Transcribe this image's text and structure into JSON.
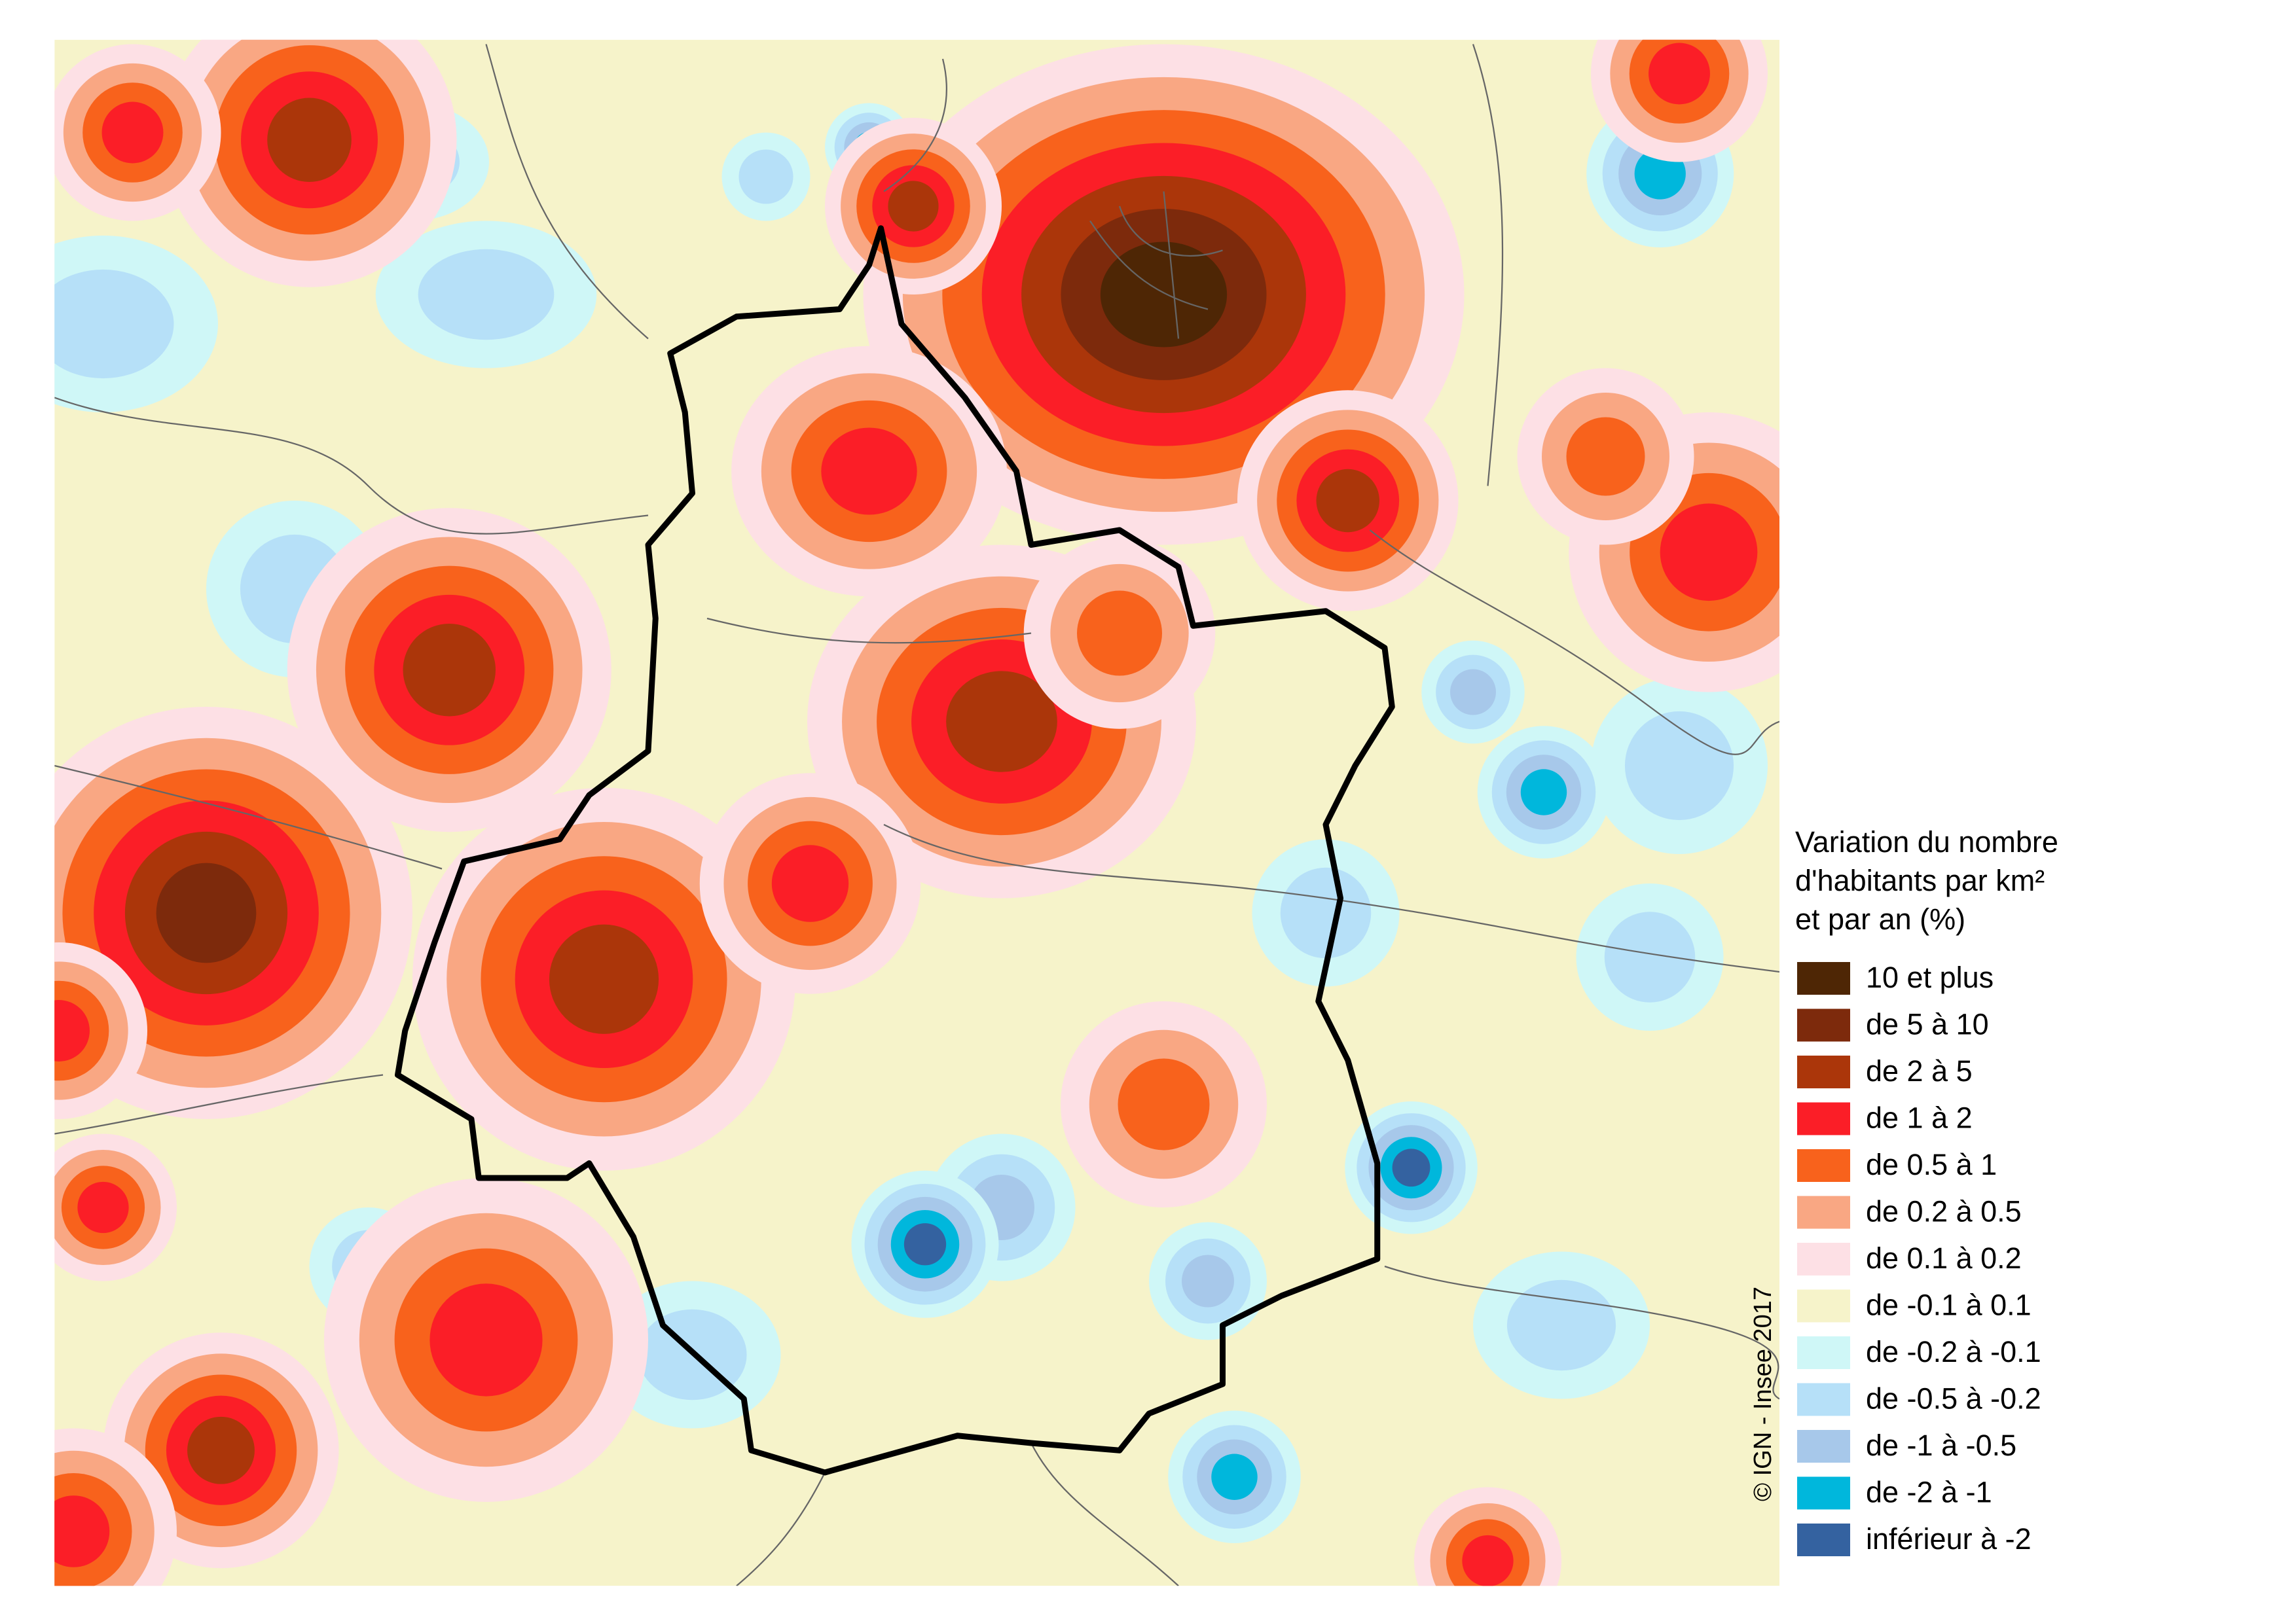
{
  "legend": {
    "title_lines": [
      "Variation du nombre",
      "d'habitants par km²",
      "et par an (%)"
    ],
    "items": [
      {
        "label": "10 et plus",
        "color": "#4e2605"
      },
      {
        "label": "de 5 à 10",
        "color": "#7d2a0c"
      },
      {
        "label": "de 2 à 5",
        "color": "#ab360a"
      },
      {
        "label": "de 1 à 2",
        "color": "#fb1e27"
      },
      {
        "label": "de 0.5 à 1",
        "color": "#f8621c"
      },
      {
        "label": "de 0.2 à 0.5",
        "color": "#f9a783"
      },
      {
        "label": "de 0.1 à 0.2",
        "color": "#fde0e5"
      },
      {
        "label": "de -0.1 à 0.1",
        "color": "#f6f3ca"
      },
      {
        "label": "de -0.2 à -0.1",
        "color": "#cff7f7"
      },
      {
        "label": "de -0.5 à -0.2",
        "color": "#b6e0f8"
      },
      {
        "label": "de -1 à -0.5",
        "color": "#a7c8ea"
      },
      {
        "label": "de -2 à -1",
        "color": "#00b7dc"
      },
      {
        "label": "inférieur à -2",
        "color": "#3462a0"
      }
    ]
  },
  "copyright": "© IGN - Insee 2017"
}
